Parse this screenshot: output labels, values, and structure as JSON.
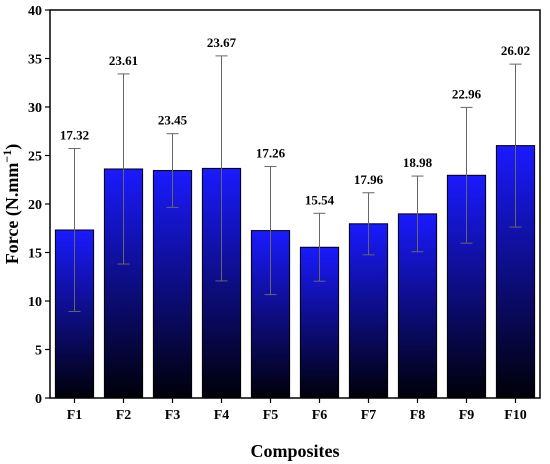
{
  "chart_data": {
    "type": "bar",
    "title": "",
    "xlabel": "Composites",
    "ylabel_main": "Force (N.mm",
    "ylabel_sup": "−1",
    "ylabel_close": ")",
    "categories": [
      "F1",
      "F2",
      "F3",
      "F4",
      "F5",
      "F6",
      "F7",
      "F8",
      "F9",
      "F10"
    ],
    "values": [
      17.32,
      23.61,
      23.45,
      23.67,
      17.26,
      15.54,
      17.96,
      18.98,
      22.96,
      26.02
    ],
    "value_labels": [
      "17.32",
      "23.61",
      "23.45",
      "23.67",
      "17.26",
      "15.54",
      "17.96",
      "18.98",
      "22.96",
      "26.02"
    ],
    "error": [
      8.4,
      9.8,
      3.8,
      11.6,
      6.6,
      3.5,
      3.2,
      3.9,
      7.0,
      8.4
    ],
    "ylim": [
      0,
      40
    ],
    "yticks": [
      0,
      5,
      10,
      15,
      20,
      25,
      30,
      35,
      40
    ],
    "ytick_labels": [
      "0",
      "5",
      "10",
      "15",
      "20",
      "25",
      "30",
      "35",
      "40"
    ],
    "bar_gradient": {
      "top": "#1a1aff",
      "bottom": "#000008"
    },
    "grid": false,
    "legend": "none"
  }
}
